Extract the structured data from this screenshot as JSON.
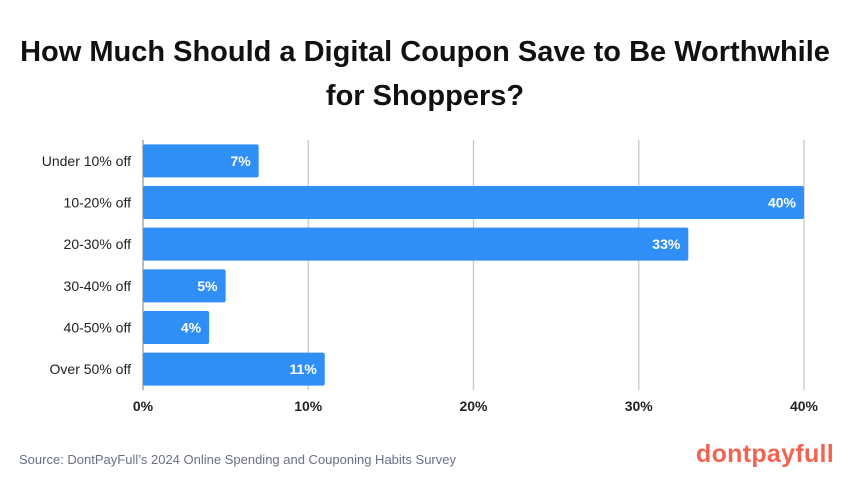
{
  "chart_data": {
    "type": "bar",
    "orientation": "horizontal",
    "title": "How Much Should a Digital Coupon Save to Be Worthwhile for Shoppers?",
    "categories": [
      "Under 10% off",
      "10-20% off",
      "20-30% off",
      "30-40% off",
      "40-50% off",
      "Over 50% off"
    ],
    "values": [
      7,
      40,
      33,
      5,
      4,
      11
    ],
    "data_labels": [
      "7%",
      "40%",
      "33%",
      "5%",
      "4%",
      "11%"
    ],
    "xlim": [
      0,
      40
    ],
    "x_ticks": [
      0,
      10,
      20,
      30,
      40
    ],
    "x_tick_labels": [
      "0%",
      "10%",
      "20%",
      "30%",
      "40%"
    ],
    "grid": true,
    "bar_color": "#2f8ff6"
  },
  "footer": {
    "source": "Source: DontPayFull’s 2024 Online Spending and Couponing Habits Survey",
    "logo": "dontpayfull",
    "logo_color": "#f26451"
  }
}
